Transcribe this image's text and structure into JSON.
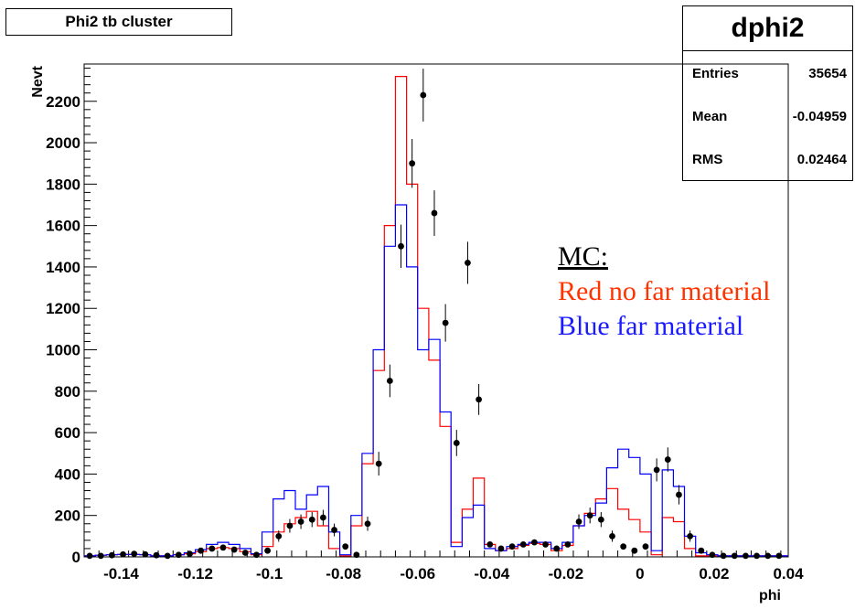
{
  "title_box": "Phi2 tb cluster",
  "stats": {
    "name": "dphi2",
    "rows": [
      {
        "key": "Entries",
        "value": "35654"
      },
      {
        "key": "Mean",
        "value": "-0.04959"
      },
      {
        "key": "RMS",
        "value": "0.02464"
      }
    ]
  },
  "legend": {
    "header": "MC:",
    "red_label": "Red no far material",
    "blue_label": "Blue far material"
  },
  "colors": {
    "red": "#ff0000",
    "blue": "#0000ff",
    "data": "#000000"
  },
  "chart_data": {
    "type": "line",
    "title": "Phi2 tb cluster",
    "xlabel": "phi",
    "ylabel": "Nevt",
    "xlim": [
      -0.15,
      0.04
    ],
    "ylim": [
      0,
      2380
    ],
    "xticks": [
      -0.14,
      -0.12,
      -0.1,
      -0.08,
      -0.06,
      -0.04,
      -0.02,
      0,
      0.02,
      0.04
    ],
    "xtick_labels": [
      "-0.14",
      "-0.12",
      "-0.1",
      "-0.08",
      "-0.06",
      "-0.04",
      "-0.02",
      "0",
      "0.02",
      "0.04"
    ],
    "yticks": [
      0,
      200,
      400,
      600,
      800,
      1000,
      1200,
      1400,
      1600,
      1800,
      2000,
      2200
    ],
    "ytick_labels": [
      "0",
      "200",
      "400",
      "600",
      "800",
      "1000",
      "1200",
      "1400",
      "1600",
      "1800",
      "2000",
      "2200"
    ],
    "grid": false,
    "series": [
      {
        "name": "Red no far material",
        "style": "step",
        "x": [
          -0.1515,
          -0.1485,
          -0.1455,
          -0.1425,
          -0.1395,
          -0.1365,
          -0.1335,
          -0.1305,
          -0.1275,
          -0.1245,
          -0.1215,
          -0.1185,
          -0.1155,
          -0.1125,
          -0.1095,
          -0.1065,
          -0.1035,
          -0.1005,
          -0.0975,
          -0.0945,
          -0.0915,
          -0.0885,
          -0.0855,
          -0.0825,
          -0.0795,
          -0.0765,
          -0.0735,
          -0.0705,
          -0.0675,
          -0.0645,
          -0.0615,
          -0.0585,
          -0.0555,
          -0.0525,
          -0.0495,
          -0.0465,
          -0.0435,
          -0.0405,
          -0.0375,
          -0.0345,
          -0.0315,
          -0.0285,
          -0.0255,
          -0.0225,
          -0.0195,
          -0.0165,
          -0.0135,
          -0.0105,
          -0.0075,
          -0.0045,
          -0.0015,
          0.0015,
          0.0045,
          0.0075,
          0.0105,
          0.0135,
          0.0165,
          0.0195,
          0.0225,
          0.0255,
          0.0285,
          0.0315,
          0.0345,
          0.0375,
          0.04
        ],
        "y": [
          5,
          5,
          8,
          10,
          12,
          12,
          10,
          5,
          5,
          10,
          15,
          25,
          40,
          45,
          40,
          25,
          10,
          50,
          120,
          160,
          190,
          220,
          150,
          40,
          5,
          150,
          450,
          900,
          1600,
          2320,
          1800,
          1200,
          950,
          630,
          70,
          230,
          380,
          60,
          30,
          40,
          55,
          65,
          60,
          30,
          55,
          150,
          210,
          280,
          330,
          230,
          180,
          120,
          10,
          190,
          170,
          40,
          5,
          5,
          5,
          5,
          5,
          5,
          5,
          5,
          5
        ]
      },
      {
        "name": "Blue far material",
        "style": "step",
        "x": [
          -0.1515,
          -0.1485,
          -0.1455,
          -0.1425,
          -0.1395,
          -0.1365,
          -0.1335,
          -0.1305,
          -0.1275,
          -0.1245,
          -0.1215,
          -0.1185,
          -0.1155,
          -0.1125,
          -0.1095,
          -0.1065,
          -0.1035,
          -0.1005,
          -0.0975,
          -0.0945,
          -0.0915,
          -0.0885,
          -0.0855,
          -0.0825,
          -0.0795,
          -0.0765,
          -0.0735,
          -0.0705,
          -0.0675,
          -0.0645,
          -0.0615,
          -0.0585,
          -0.0555,
          -0.0525,
          -0.0495,
          -0.0465,
          -0.0435,
          -0.0405,
          -0.0375,
          -0.0345,
          -0.0315,
          -0.0285,
          -0.0255,
          -0.0225,
          -0.0195,
          -0.0165,
          -0.0135,
          -0.0105,
          -0.0075,
          -0.0045,
          -0.0015,
          0.0015,
          0.0045,
          0.0075,
          0.0105,
          0.0135,
          0.0165,
          0.0195,
          0.0225,
          0.0255,
          0.0285,
          0.0315,
          0.0345,
          0.0375,
          0.04
        ],
        "y": [
          5,
          5,
          8,
          10,
          12,
          12,
          10,
          5,
          5,
          10,
          20,
          35,
          60,
          70,
          60,
          40,
          15,
          120,
          280,
          320,
          230,
          300,
          340,
          120,
          10,
          200,
          500,
          1000,
          1500,
          1700,
          1400,
          1000,
          1050,
          700,
          50,
          190,
          250,
          40,
          30,
          50,
          60,
          70,
          70,
          40,
          70,
          150,
          200,
          260,
          430,
          520,
          480,
          400,
          30,
          420,
          340,
          100,
          20,
          10,
          5,
          5,
          5,
          5,
          5,
          5,
          5
        ]
      },
      {
        "name": "data",
        "style": "points",
        "x": [
          -0.1485,
          -0.1455,
          -0.1425,
          -0.1395,
          -0.1365,
          -0.1335,
          -0.1305,
          -0.1275,
          -0.1245,
          -0.1215,
          -0.1185,
          -0.1155,
          -0.1125,
          -0.1095,
          -0.1065,
          -0.1035,
          -0.1005,
          -0.0975,
          -0.0945,
          -0.0915,
          -0.0885,
          -0.0855,
          -0.0825,
          -0.0795,
          -0.0765,
          -0.0735,
          -0.0705,
          -0.0675,
          -0.0645,
          -0.0615,
          -0.0585,
          -0.0555,
          -0.0525,
          -0.0495,
          -0.0465,
          -0.0435,
          -0.0405,
          -0.0375,
          -0.0345,
          -0.0315,
          -0.0285,
          -0.0255,
          -0.0225,
          -0.0195,
          -0.0165,
          -0.0135,
          -0.0105,
          -0.0075,
          -0.0045,
          -0.0015,
          0.0015,
          0.0045,
          0.0075,
          0.0105,
          0.0135,
          0.0165,
          0.0195,
          0.0225,
          0.0255,
          0.0285,
          0.0315,
          0.0345,
          0.0375
        ],
        "y": [
          5,
          5,
          8,
          12,
          15,
          12,
          8,
          5,
          10,
          15,
          30,
          40,
          45,
          35,
          20,
          10,
          30,
          100,
          150,
          170,
          180,
          190,
          130,
          50,
          10,
          160,
          450,
          850,
          1500,
          1900,
          2230,
          1660,
          1130,
          550,
          1420,
          760,
          60,
          40,
          50,
          60,
          70,
          60,
          40,
          60,
          170,
          200,
          180,
          100,
          50,
          30,
          50,
          420,
          470,
          300,
          100,
          30,
          10,
          5,
          5,
          5,
          5,
          5,
          5
        ]
      }
    ]
  }
}
